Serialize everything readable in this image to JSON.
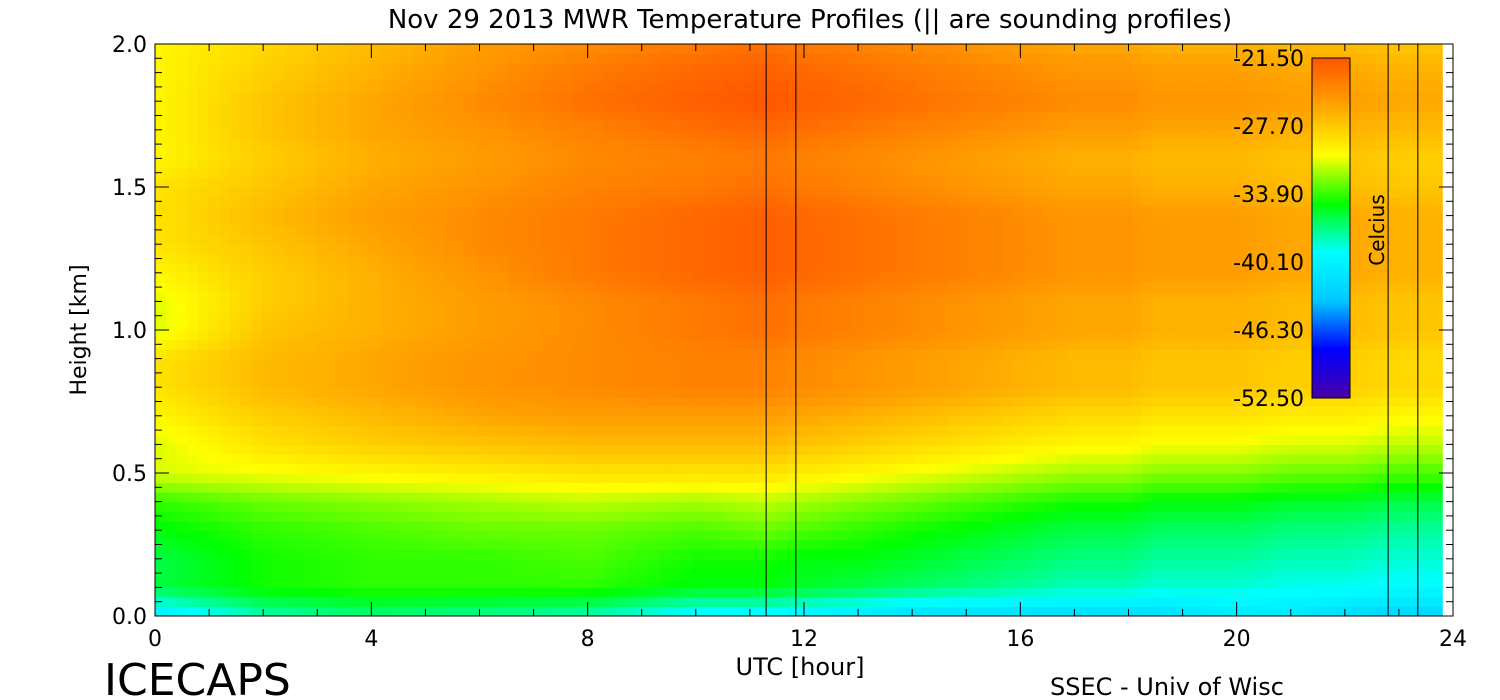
{
  "chart_data": {
    "type": "heatmap",
    "title": "Nov 29 2013 MWR Temperature Profiles (|| are sounding profiles)",
    "xlabel": "UTC [hour]",
    "ylabel": "Height [km]",
    "xlim": [
      0,
      24
    ],
    "ylim": [
      0.0,
      2.0
    ],
    "x_ticks": [
      0,
      4,
      8,
      12,
      16,
      20,
      24
    ],
    "x_tick_labels": [
      "0",
      "4",
      "8",
      "12",
      "16",
      "20",
      "24"
    ],
    "y_ticks": [
      0.0,
      0.5,
      1.0,
      1.5,
      2.0
    ],
    "y_tick_labels": [
      "0.0",
      "0.5",
      "1.0",
      "1.5",
      "2.0"
    ],
    "colorbar": {
      "label": "Celcius",
      "min": -52.5,
      "max": -21.5,
      "tick_values": [
        -21.5,
        -27.7,
        -33.9,
        -40.1,
        -46.3,
        -52.5
      ],
      "tick_labels": [
        "-21.50",
        "-27.70",
        "-33.90",
        "-40.10",
        "-46.30",
        "-52.50"
      ],
      "colors": [
        "#4a00a8",
        "#0000ff",
        "#00c8ff",
        "#00ffff",
        "#00ff00",
        "#ffff00",
        "#ffa500",
        "#ff5500"
      ]
    },
    "sounding_times": [
      11.3,
      11.85,
      22.8,
      23.35
    ],
    "data_end_hour": 23.8,
    "heights_km": [
      0.0,
      0.1,
      0.2,
      0.3,
      0.4,
      0.5,
      0.6,
      0.7,
      0.8,
      0.9,
      1.0,
      1.1,
      1.2,
      1.3,
      1.4,
      1.5,
      1.6,
      1.7,
      1.8,
      1.9,
      2.0
    ],
    "hours": [
      0,
      2,
      4,
      6,
      8,
      10,
      11.3,
      12,
      13,
      14,
      15,
      16,
      17,
      18,
      18.5,
      19,
      20,
      21,
      22,
      23,
      23.8
    ],
    "temperature_c": [
      [
        -41,
        -38,
        -37,
        -37.5,
        -38,
        -40,
        -40,
        -40.5,
        -41,
        -42,
        -42,
        -42,
        -42,
        -42,
        -42,
        -41.5,
        -41,
        -41,
        -42,
        -42.5,
        -42.5
      ],
      [
        -36,
        -34.5,
        -34,
        -34,
        -34,
        -35,
        -35,
        -35.5,
        -36,
        -36.5,
        -37,
        -37.5,
        -38,
        -38,
        -38.5,
        -38.5,
        -38.5,
        -39,
        -39,
        -39.5,
        -39.5
      ],
      [
        -36,
        -34.5,
        -34,
        -34,
        -33.5,
        -34.5,
        -34.5,
        -35,
        -35,
        -35.5,
        -36,
        -36.5,
        -37,
        -37,
        -37.5,
        -37.5,
        -37.5,
        -38,
        -38,
        -38.5,
        -38.5
      ],
      [
        -35,
        -34,
        -33.5,
        -33,
        -33,
        -33.5,
        -33,
        -33.5,
        -34,
        -34.5,
        -35,
        -35.5,
        -36,
        -36,
        -36.5,
        -36.5,
        -36.5,
        -37,
        -37,
        -37.5,
        -37.5
      ],
      [
        -34,
        -33,
        -32.5,
        -32,
        -31.5,
        -32,
        -31.5,
        -32,
        -32.5,
        -33,
        -33.5,
        -34,
        -34.5,
        -34.5,
        -35,
        -35,
        -35,
        -35.5,
        -35.5,
        -36,
        -36
      ],
      [
        -31,
        -30.5,
        -30,
        -29.5,
        -29,
        -29,
        -29,
        -29.5,
        -30,
        -30.5,
        -31,
        -31.5,
        -32,
        -32,
        -32.5,
        -32.5,
        -32.5,
        -33,
        -33,
        -33.5,
        -33.5
      ],
      [
        -31,
        -29,
        -28,
        -27.5,
        -27,
        -27,
        -27,
        -27.5,
        -28,
        -28.5,
        -29,
        -29.5,
        -30,
        -30,
        -30.5,
        -30.5,
        -30.5,
        -31,
        -31,
        -31.5,
        -31.5
      ],
      [
        -30,
        -28,
        -27,
        -26,
        -25.5,
        -25.5,
        -25.5,
        -26,
        -26.5,
        -27,
        -27.5,
        -28,
        -28.5,
        -28.5,
        -29,
        -29,
        -29,
        -29.5,
        -29.5,
        -30,
        -30
      ],
      [
        -29,
        -27,
        -26,
        -25,
        -24.5,
        -24,
        -24,
        -24.5,
        -25,
        -25.5,
        -26,
        -26.5,
        -27,
        -27,
        -27.5,
        -27.5,
        -27.5,
        -28,
        -28,
        -28.5,
        -28.5
      ],
      [
        -29,
        -27,
        -26,
        -25,
        -24.5,
        -24,
        -24,
        -24.5,
        -25,
        -25.5,
        -26,
        -26.5,
        -27,
        -27,
        -27.5,
        -27.5,
        -27.5,
        -28,
        -28,
        -28.5,
        -28.5
      ],
      [
        -31,
        -27.5,
        -26.5,
        -25.5,
        -24.5,
        -23.5,
        -23,
        -23.5,
        -24,
        -24.5,
        -25,
        -25.5,
        -26,
        -26,
        -26.5,
        -26.5,
        -26.5,
        -27,
        -27,
        -27.5,
        -27.5
      ],
      [
        -31,
        -28,
        -26.5,
        -25.5,
        -24.5,
        -23.5,
        -23,
        -23.5,
        -24,
        -24.5,
        -25,
        -25.5,
        -26,
        -26,
        -26.5,
        -26.5,
        -26.5,
        -27,
        -27,
        -27.5,
        -27.5
      ],
      [
        -30,
        -28,
        -26.5,
        -25,
        -23.5,
        -22.5,
        -22,
        -22.5,
        -23,
        -23.5,
        -24,
        -24.5,
        -25,
        -25,
        -25.5,
        -25.5,
        -25.5,
        -26,
        -26,
        -26.5,
        -26.5
      ],
      [
        -29,
        -27.5,
        -26,
        -24.5,
        -23.5,
        -22.5,
        -22,
        -22.5,
        -23,
        -23.5,
        -24,
        -24.5,
        -25,
        -25,
        -25.5,
        -25.5,
        -25.5,
        -26,
        -26,
        -26.5,
        -26.5
      ],
      [
        -29,
        -27,
        -25.5,
        -24.5,
        -23.5,
        -22.5,
        -22,
        -22.5,
        -23,
        -23.5,
        -24,
        -24.5,
        -25,
        -25,
        -25.5,
        -25.5,
        -25.5,
        -26,
        -26,
        -26.5,
        -26.5
      ],
      [
        -29,
        -27.5,
        -26,
        -25,
        -24,
        -23.5,
        -23,
        -23.5,
        -24,
        -24.5,
        -25,
        -25.5,
        -26,
        -26,
        -26.5,
        -26.5,
        -26.5,
        -27,
        -27,
        -27.5,
        -27.5
      ],
      [
        -30,
        -28,
        -26.5,
        -25.5,
        -24.5,
        -24,
        -23.5,
        -24,
        -24.5,
        -25,
        -25.5,
        -26,
        -26.5,
        -26.5,
        -27,
        -27,
        -27,
        -27.5,
        -27.5,
        -28,
        -28
      ],
      [
        -30,
        -27.5,
        -26,
        -25,
        -24,
        -23,
        -22.5,
        -23,
        -23.5,
        -24,
        -24.5,
        -25,
        -25.5,
        -25.5,
        -26,
        -26,
        -26,
        -26.5,
        -26.5,
        -27,
        -27
      ],
      [
        -30,
        -27.5,
        -26,
        -24.5,
        -23,
        -22,
        -21.5,
        -22,
        -22.5,
        -23,
        -23.5,
        -24,
        -24.5,
        -24.5,
        -25,
        -25,
        -25,
        -25.5,
        -25.5,
        -26,
        -26
      ],
      [
        -30,
        -28,
        -26.5,
        -25,
        -23.5,
        -22.5,
        -22,
        -22.5,
        -23,
        -23.5,
        -24,
        -24.5,
        -25,
        -25,
        -25.5,
        -25.5,
        -25.5,
        -26,
        -26,
        -26.5,
        -26.5
      ],
      [
        -30,
        -28.5,
        -27,
        -25.5,
        -24.5,
        -23.5,
        -23,
        -23.5,
        -24,
        -24.5,
        -25,
        -25.5,
        -26,
        -26,
        -26.5,
        -26.5,
        -26.5,
        -27,
        -27,
        -27.5,
        -27.5
      ]
    ]
  },
  "footer": {
    "left": "ICECAPS",
    "right": "SSEC - Univ of Wisc"
  }
}
